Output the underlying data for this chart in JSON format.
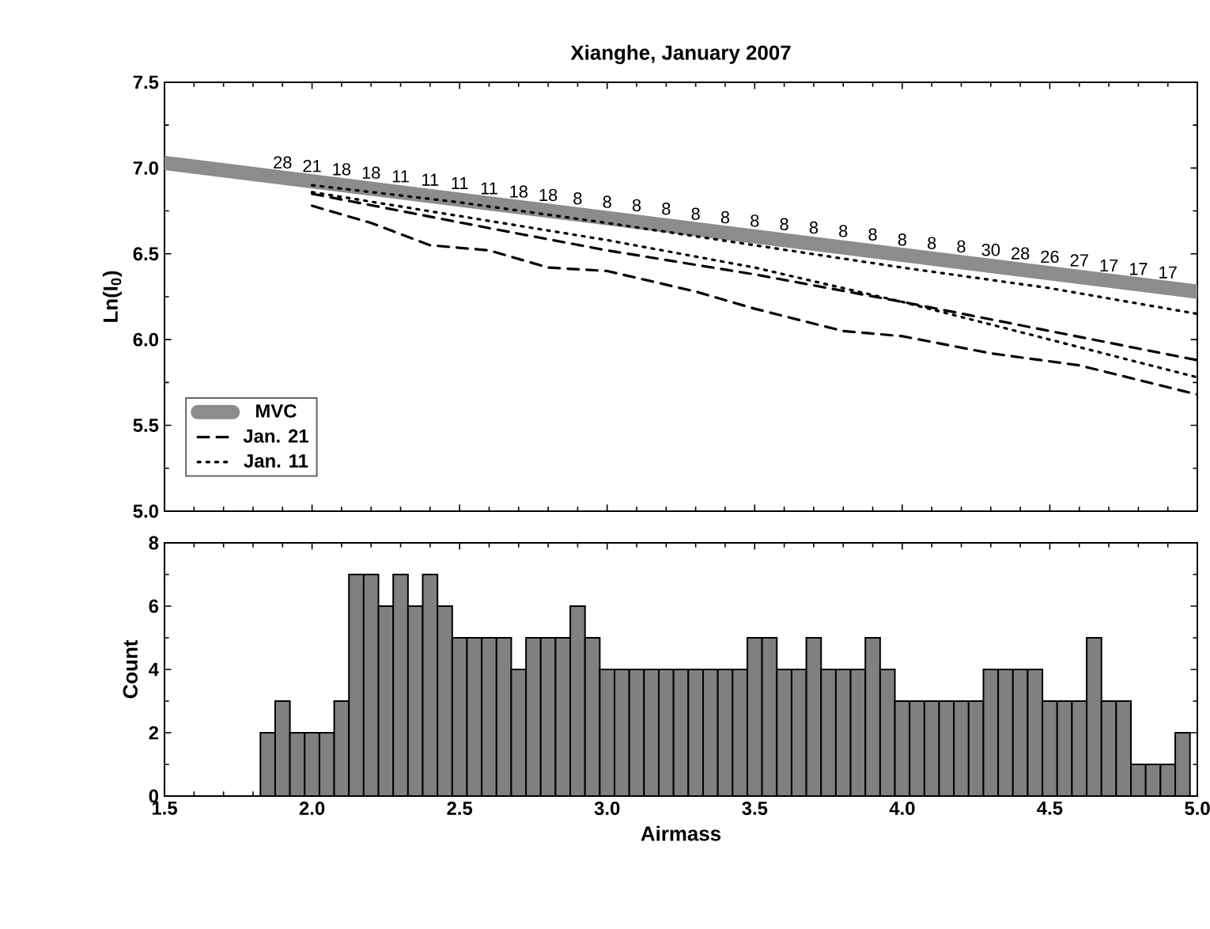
{
  "chart_data": [
    {
      "type": "line",
      "title": "Xianghe, January 2007",
      "ylabel": "Ln(I$_{0}$)",
      "xlim": [
        1.5,
        5.0
      ],
      "ylim": [
        5.0,
        7.5
      ],
      "xticks": [
        1.5,
        2,
        2.5,
        3,
        3.5,
        4,
        4.5,
        5
      ],
      "yticks": [
        {
          "value": 5.0,
          "label": "5.0"
        },
        5.5,
        {
          "value": 6.0,
          "label": "6.0"
        },
        6.5,
        {
          "value": 7.0,
          "label": "7.0"
        },
        7.5
      ],
      "tick_labels": "y",
      "legend": "bottom left",
      "series": [
        {
          "name": "MVC",
          "color": "#8c8c8c",
          "line_style": "solid",
          "x": [
            1.5,
            5.0
          ],
          "values": [
            7.03,
            6.28
          ]
        },
        {
          "name": "Jan. 21",
          "color": "#000000",
          "line_style": "dashed",
          "x": [
            2.0,
            2.3,
            2.6,
            3.0,
            3.5,
            4.0,
            4.5,
            5.0
          ],
          "values": [
            6.85,
            6.75,
            6.65,
            6.52,
            6.38,
            6.22,
            6.05,
            5.88
          ]
        },
        {
          "color": "#000000",
          "line_style": "dashed",
          "x": [
            2.0,
            2.2,
            2.4,
            2.6,
            2.8,
            3.0,
            3.3,
            3.5,
            3.8,
            4.0,
            4.3,
            4.6,
            5.0
          ],
          "values": [
            6.78,
            6.68,
            6.55,
            6.52,
            6.42,
            6.4,
            6.28,
            6.18,
            6.05,
            6.02,
            5.92,
            5.85,
            5.68
          ]
        },
        {
          "name": "Jan. 11",
          "color": "#000000",
          "line_style": "dotted",
          "x": [
            2.0,
            2.5,
            3.0,
            3.5,
            4.0,
            4.5,
            5.0
          ],
          "values": [
            6.9,
            6.8,
            6.68,
            6.55,
            6.42,
            6.3,
            6.15
          ]
        },
        {
          "color": "#000000",
          "line_style": "dotted",
          "x": [
            2.0,
            2.5,
            3.0,
            3.5,
            4.0,
            4.5,
            5.0
          ],
          "values": [
            6.86,
            6.72,
            6.58,
            6.42,
            6.22,
            6.0,
            5.78
          ]
        }
      ],
      "annotations": [
        {
          "text": "28",
          "x": 1.9,
          "y": 6.94
        },
        {
          "text": "21",
          "x": 2.0,
          "y": 6.92
        },
        {
          "text": "18",
          "x": 2.1,
          "y": 6.9
        },
        {
          "text": "18",
          "x": 2.2,
          "y": 6.88
        },
        {
          "text": "11",
          "x": 2.3,
          "y": 6.86
        },
        {
          "text": "11",
          "x": 2.4,
          "y": 6.84
        },
        {
          "text": "11",
          "x": 2.5,
          "y": 6.82
        },
        {
          "text": "11",
          "x": 2.6,
          "y": 6.79
        },
        {
          "text": "18",
          "x": 2.7,
          "y": 6.77
        },
        {
          "text": "18",
          "x": 2.8,
          "y": 6.75
        },
        {
          "text": "8",
          "x": 2.9,
          "y": 6.73
        },
        {
          "text": "8",
          "x": 3.0,
          "y": 6.71
        },
        {
          "text": "8",
          "x": 3.1,
          "y": 6.69
        },
        {
          "text": "8",
          "x": 3.2,
          "y": 6.67
        },
        {
          "text": "8",
          "x": 3.3,
          "y": 6.64
        },
        {
          "text": "8",
          "x": 3.4,
          "y": 6.62
        },
        {
          "text": "8",
          "x": 3.5,
          "y": 6.6
        },
        {
          "text": "8",
          "x": 3.6,
          "y": 6.58
        },
        {
          "text": "8",
          "x": 3.7,
          "y": 6.56
        },
        {
          "text": "8",
          "x": 3.8,
          "y": 6.54
        },
        {
          "text": "8",
          "x": 3.9,
          "y": 6.52
        },
        {
          "text": "8",
          "x": 4.0,
          "y": 6.49
        },
        {
          "text": "8",
          "x": 4.1,
          "y": 6.47
        },
        {
          "text": "8",
          "x": 4.2,
          "y": 6.45
        },
        {
          "text": "30",
          "x": 4.3,
          "y": 6.43
        },
        {
          "text": "28",
          "x": 4.4,
          "y": 6.41
        },
        {
          "text": "26",
          "x": 4.5,
          "y": 6.39
        },
        {
          "text": "27",
          "x": 4.6,
          "y": 6.37
        },
        {
          "text": "17",
          "x": 4.7,
          "y": 6.34
        },
        {
          "text": "17",
          "x": 4.8,
          "y": 6.32
        },
        {
          "text": "17",
          "x": 4.9,
          "y": 6.3
        }
      ]
    },
    {
      "type": "histogram",
      "xlabel": "Airmass",
      "ylabel": "Count",
      "xlim": [
        1.5,
        5.0
      ],
      "ylim": [
        0,
        8
      ],
      "color": "#808080",
      "xticks": [
        1.5,
        {
          "value": 2.0,
          "label": "2.0"
        },
        2.5,
        {
          "value": 3.0,
          "label": "3.0"
        },
        3.5,
        {
          "value": 4.0,
          "label": "4.0"
        },
        4.5,
        {
          "value": 5.0,
          "label": "5.0"
        }
      ],
      "yticks": [
        0,
        2,
        4,
        6,
        8
      ],
      "bins": [
        1.825,
        1.875,
        1.925,
        1.975,
        2.025,
        2.075,
        2.125,
        2.175,
        2.225,
        2.275,
        2.325,
        2.375,
        2.425,
        2.475,
        2.525,
        2.575,
        2.625,
        2.675,
        2.725,
        2.775,
        2.825,
        2.875,
        2.925,
        2.975,
        3.025,
        3.075,
        3.125,
        3.175,
        3.225,
        3.275,
        3.325,
        3.375,
        3.425,
        3.475,
        3.525,
        3.575,
        3.625,
        3.675,
        3.725,
        3.775,
        3.825,
        3.875,
        3.925,
        3.975,
        4.025,
        4.075,
        4.125,
        4.175,
        4.225,
        4.275,
        4.325,
        4.375,
        4.425,
        4.475,
        4.525,
        4.575,
        4.625,
        4.675,
        4.725,
        4.775,
        4.825,
        4.875,
        4.925,
        4.975
      ],
      "values": [
        2,
        3,
        2,
        2,
        2,
        3,
        7,
        7,
        6,
        7,
        6,
        7,
        6,
        5,
        5,
        5,
        5,
        4,
        5,
        5,
        5,
        6,
        5,
        4,
        4,
        4,
        4,
        4,
        4,
        4,
        4,
        4,
        4,
        5,
        5,
        4,
        4,
        5,
        4,
        4,
        4,
        5,
        4,
        3,
        3,
        3,
        3,
        3,
        3,
        4,
        4,
        4,
        4,
        3,
        3,
        3,
        5,
        3,
        3,
        1,
        1,
        1,
        2
      ]
    }
  ]
}
